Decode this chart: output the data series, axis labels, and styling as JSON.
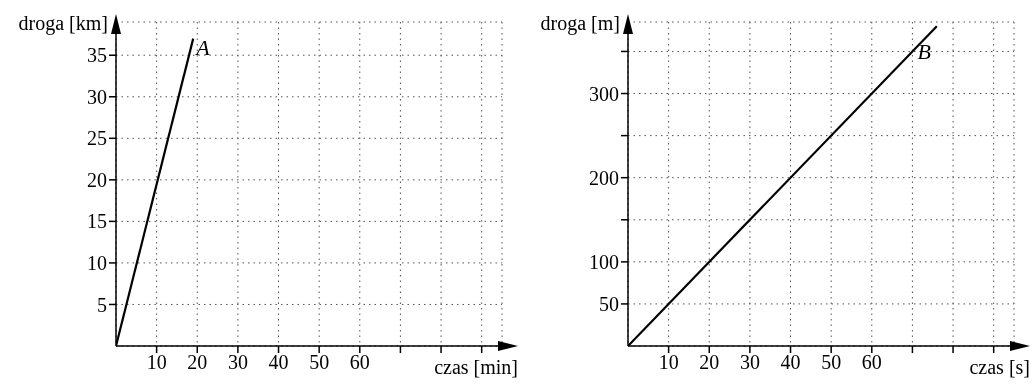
{
  "chart_data": [
    {
      "type": "line",
      "xlabel": "czas [min]",
      "ylabel": "droga [km]",
      "grid": true,
      "marker": "none",
      "line_style": "solid",
      "series": [
        {
          "color": "#000000",
          "x": [
            0,
            19
          ],
          "values": [
            0,
            37
          ]
        }
      ],
      "xlim": [
        0,
        95
      ],
      "ylim": [
        0,
        39
      ],
      "xticks": [
        10,
        20,
        30,
        40,
        50,
        60,
        {
          "value": 70,
          "label": null
        },
        {
          "value": 80,
          "label": null
        },
        {
          "value": 90,
          "label": null
        }
      ],
      "yticks": [
        5,
        10,
        15,
        20,
        25,
        30,
        35
      ],
      "annotations": [
        {
          "text": "A",
          "x": 18.5,
          "y": 36
        }
      ]
    },
    {
      "type": "line",
      "xlabel": "czas [s]",
      "ylabel": "droga [m]",
      "grid": true,
      "marker": "none",
      "line_style": "solid",
      "series": [
        {
          "color": "#000000",
          "x": [
            0,
            76
          ],
          "values": [
            0,
            380
          ]
        }
      ],
      "xlim": [
        0,
        95
      ],
      "ylim": [
        0,
        385
      ],
      "xticks": [
        10,
        20,
        30,
        40,
        50,
        60,
        {
          "value": 70,
          "label": null
        },
        {
          "value": 80,
          "label": null
        },
        {
          "value": 90,
          "label": null
        }
      ],
      "yticks": [
        50,
        100,
        {
          "value": 150,
          "label": null
        },
        200,
        {
          "value": 250,
          "label": null
        },
        300,
        {
          "value": 350,
          "label": null
        }
      ],
      "annotations": [
        {
          "text": "B",
          "x": 70,
          "y": 350
        }
      ]
    }
  ]
}
